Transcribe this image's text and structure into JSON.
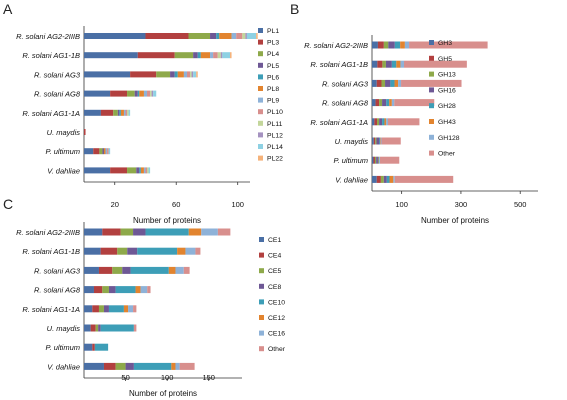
{
  "chart_data": [
    {
      "panel": "A",
      "type": "bar",
      "orientation": "horizontal",
      "stacked": true,
      "categories": [
        "R. solani AG2-2IIIB",
        "R. solani AG1-1B",
        "R. solani AG3",
        "R. solani AG8",
        "R. solani AG1-1A",
        "U. maydis",
        "P. ultimum",
        "V. dahliae"
      ],
      "xlabel": "Number of proteins",
      "xticks": [
        20,
        60,
        100
      ],
      "xlim": [
        0,
        108
      ],
      "legend_position": "right",
      "series": [
        {
          "name": "PL1",
          "color": "#4a6fa5",
          "values": [
            40,
            35,
            30,
            17,
            11,
            0,
            6,
            17
          ]
        },
        {
          "name": "PL3",
          "color": "#b2403f",
          "values": [
            28,
            24,
            17,
            11,
            8,
            1,
            4,
            11
          ]
        },
        {
          "name": "PL4",
          "color": "#8ea94a",
          "values": [
            14,
            12,
            9,
            5,
            3,
            0,
            2,
            6
          ]
        },
        {
          "name": "PL5",
          "color": "#6e5895",
          "values": [
            4,
            3,
            3,
            2,
            1,
            0,
            1,
            2
          ]
        },
        {
          "name": "PL6",
          "color": "#3d9eb7",
          "values": [
            2,
            2,
            2,
            1,
            1,
            0,
            0,
            1
          ]
        },
        {
          "name": "PL8",
          "color": "#e2842f",
          "values": [
            8,
            6,
            4,
            3,
            2,
            0,
            1,
            2
          ]
        },
        {
          "name": "PL9",
          "color": "#8eb2d8",
          "values": [
            3,
            2,
            2,
            2,
            1,
            0,
            1,
            1
          ]
        },
        {
          "name": "PL10",
          "color": "#d88f8d",
          "values": [
            4,
            3,
            2,
            2,
            1,
            0,
            1,
            1
          ]
        },
        {
          "name": "PL11",
          "color": "#c3d69b",
          "values": [
            2,
            2,
            1,
            1,
            1,
            0,
            0,
            1
          ]
        },
        {
          "name": "PL12",
          "color": "#a592c0",
          "values": [
            1,
            1,
            1,
            1,
            0,
            0,
            0,
            0
          ]
        },
        {
          "name": "PL14",
          "color": "#8ed1e3",
          "values": [
            6,
            5,
            2,
            2,
            1,
            0,
            1,
            1
          ]
        },
        {
          "name": "PL22",
          "color": "#f5b27a",
          "values": [
            1,
            1,
            1,
            0,
            0,
            0,
            0,
            0
          ]
        }
      ]
    },
    {
      "panel": "B",
      "type": "bar",
      "orientation": "horizontal",
      "stacked": true,
      "categories": [
        "R. solani AG2-2IIIB",
        "R. solani AG1-1B",
        "R. solani AG3",
        "R. solani AG8",
        "R. solani AG1-1A",
        "U. maydis",
        "P. ultimum",
        "V. dahliae"
      ],
      "xlabel": "Number of proteins",
      "xticks": [
        100,
        300,
        500
      ],
      "xlim": [
        0,
        560
      ],
      "legend_position": "right",
      "series": [
        {
          "name": "GH3",
          "color": "#4a6fa5",
          "values": [
            20,
            18,
            16,
            12,
            8,
            6,
            5,
            16
          ]
        },
        {
          "name": "GH5",
          "color": "#b2403f",
          "values": [
            20,
            17,
            16,
            12,
            9,
            5,
            5,
            14
          ]
        },
        {
          "name": "GH13",
          "color": "#8ea94a",
          "values": [
            15,
            12,
            12,
            10,
            7,
            4,
            4,
            10
          ]
        },
        {
          "name": "GH16",
          "color": "#6e5895",
          "values": [
            22,
            20,
            18,
            14,
            10,
            10,
            6,
            10
          ]
        },
        {
          "name": "GH28",
          "color": "#3d9eb7",
          "values": [
            18,
            15,
            14,
            10,
            8,
            2,
            2,
            9
          ]
        },
        {
          "name": "GH43",
          "color": "#e2842f",
          "values": [
            16,
            14,
            12,
            9,
            6,
            2,
            2,
            13
          ]
        },
        {
          "name": "GH128",
          "color": "#8eb2d8",
          "values": [
            14,
            12,
            10,
            8,
            6,
            3,
            3,
            5
          ]
        },
        {
          "name": "Other",
          "color": "#d88f8d",
          "values": [
            265,
            212,
            204,
            135,
            106,
            65,
            65,
            197
          ]
        }
      ]
    },
    {
      "panel": "C",
      "type": "bar",
      "orientation": "horizontal",
      "stacked": true,
      "categories": [
        "R. solani AG2-2IIIB",
        "R. solani AG1-1B",
        "R. solani AG3",
        "R. solani AG8",
        "R. solani AG1-1A",
        "U. maydis",
        "P. ultimum",
        "V. dahliae"
      ],
      "xlabel": "Number of proteins",
      "xticks": [
        50,
        100,
        150
      ],
      "xlim": [
        0,
        190
      ],
      "legend_position": "right",
      "series": [
        {
          "name": "CE1",
          "color": "#4a6fa5",
          "values": [
            22,
            20,
            18,
            12,
            10,
            8,
            10,
            24
          ]
        },
        {
          "name": "CE4",
          "color": "#b2403f",
          "values": [
            22,
            20,
            16,
            10,
            8,
            6,
            3,
            14
          ]
        },
        {
          "name": "CE5",
          "color": "#8ea94a",
          "values": [
            15,
            12,
            12,
            8,
            6,
            3,
            0,
            12
          ]
        },
        {
          "name": "CE8",
          "color": "#6e5895",
          "values": [
            15,
            12,
            10,
            8,
            6,
            3,
            0,
            10
          ]
        },
        {
          "name": "CE10",
          "color": "#3d9eb7",
          "values": [
            52,
            48,
            46,
            24,
            18,
            40,
            16,
            45
          ]
        },
        {
          "name": "CE12",
          "color": "#e2842f",
          "values": [
            15,
            10,
            8,
            6,
            5,
            0,
            0,
            5
          ]
        },
        {
          "name": "CE16",
          "color": "#8eb2d8",
          "values": [
            20,
            12,
            10,
            8,
            6,
            0,
            0,
            5
          ]
        },
        {
          "name": "Other",
          "color": "#d88f8d",
          "values": [
            15,
            6,
            7,
            4,
            4,
            3,
            0,
            18
          ]
        }
      ]
    }
  ]
}
